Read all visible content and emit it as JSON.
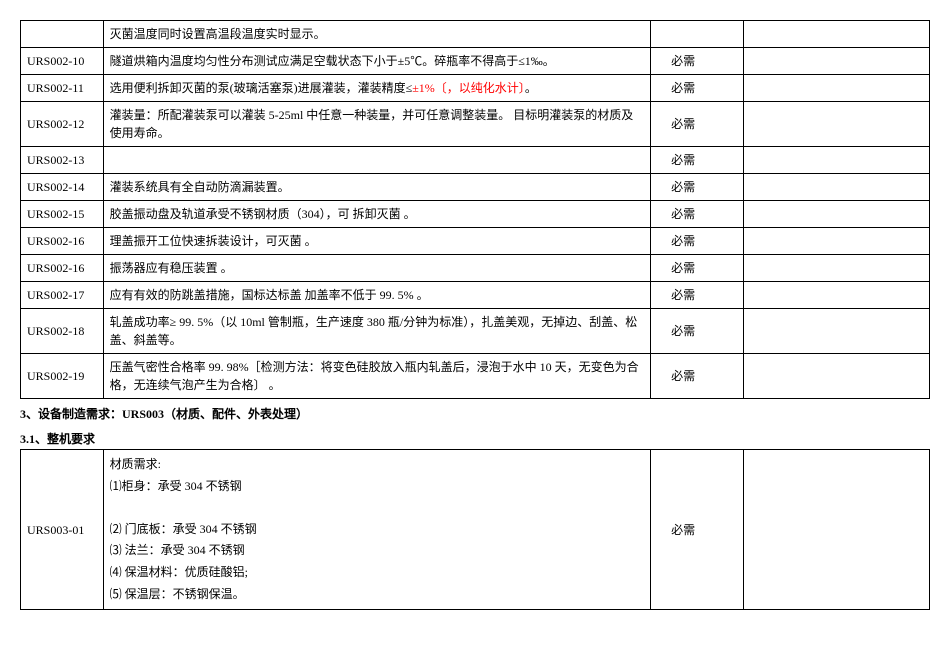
{
  "table1": {
    "rows": [
      {
        "id": "",
        "desc": "灭菌温度同时设置高温段温度实时显示。",
        "req": "",
        "extra": ""
      },
      {
        "id": "URS002-10",
        "desc": "隧道烘箱内温度均匀性分布测试应满足空载状态下小于±5℃。碎瓶率不得高于≤1‰。",
        "req": "必需",
        "extra": ""
      },
      {
        "id": "URS002-11",
        "desc_prefix": "选用便利拆卸灭菌的泵(玻璃活塞泵)进展灌装，灌装精度≤",
        "desc_red": "±1%〔，以纯化水计〕",
        "desc_suffix": "。",
        "req": "必需",
        "extra": ""
      },
      {
        "id": "URS002-12",
        "desc": "灌装量：所配灌装泵可以灌装 5-25ml 中任意一种装量，并可任意调整装量。   目标明灌装泵的材质及使用寿命。",
        "req": "必需",
        "extra": ""
      },
      {
        "id": "URS002-13",
        "desc": "",
        "req": "必需",
        "extra": ""
      },
      {
        "id": "URS002-14",
        "desc": "灌装系统具有全自动防滴漏装置。",
        "req": "必需",
        "extra": ""
      },
      {
        "id": "URS002-15",
        "desc": "胶盖振动盘及轨道承受不锈钢材质（304），可 拆卸灭菌 。",
        "req": "必需",
        "extra": ""
      },
      {
        "id": "URS002-16",
        "desc": "理盖振开工位快速拆装设计，可灭菌 。",
        "req": "必需",
        "extra": ""
      },
      {
        "id": "URS002-16",
        "desc": "振荡器应有稳压装置 。",
        "req": "必需",
        "extra": ""
      },
      {
        "id": "URS002-17",
        "desc": "应有有效的防跳盖措施，国标达标盖 加盖率不低于 99. 5% 。",
        "req": "必需",
        "extra": ""
      },
      {
        "id": "URS002-18",
        "desc": "轧盖成功率≥ 99. 5%（以 10ml 管制瓶，生产速度 380 瓶/分钟为标准），扎盖美观，无掉边、刮盖、松盖、斜盖等。",
        "req": "必需",
        "extra": ""
      },
      {
        "id": "URS002-19",
        "desc": "压盖气密性合格率 99. 98%［检测方法：将变色硅胶放入瓶内轧盖后，浸泡于水中 10 天，无变色为合格，无连续气泡产生为合格〕 。",
        "req": "必需",
        "extra": ""
      }
    ]
  },
  "section3": {
    "title": "3、设备制造需求：URS003（材质、配件、外表处理）",
    "subtitle": "3.1、整机要求"
  },
  "table2": {
    "rows": [
      {
        "id": "URS003-01",
        "desc_lines": [
          "材质需求:",
          "⑴柜身：承受 304 不锈钢",
          "",
          "⑵ 门底板：承受 304 不锈钢",
          "⑶ 法兰：承受 304 不锈钢",
          "⑷ 保温材料：优质硅酸铝;",
          "⑸ 保温层：不锈钢保温。"
        ],
        "req": "必需",
        "extra": ""
      }
    ]
  }
}
